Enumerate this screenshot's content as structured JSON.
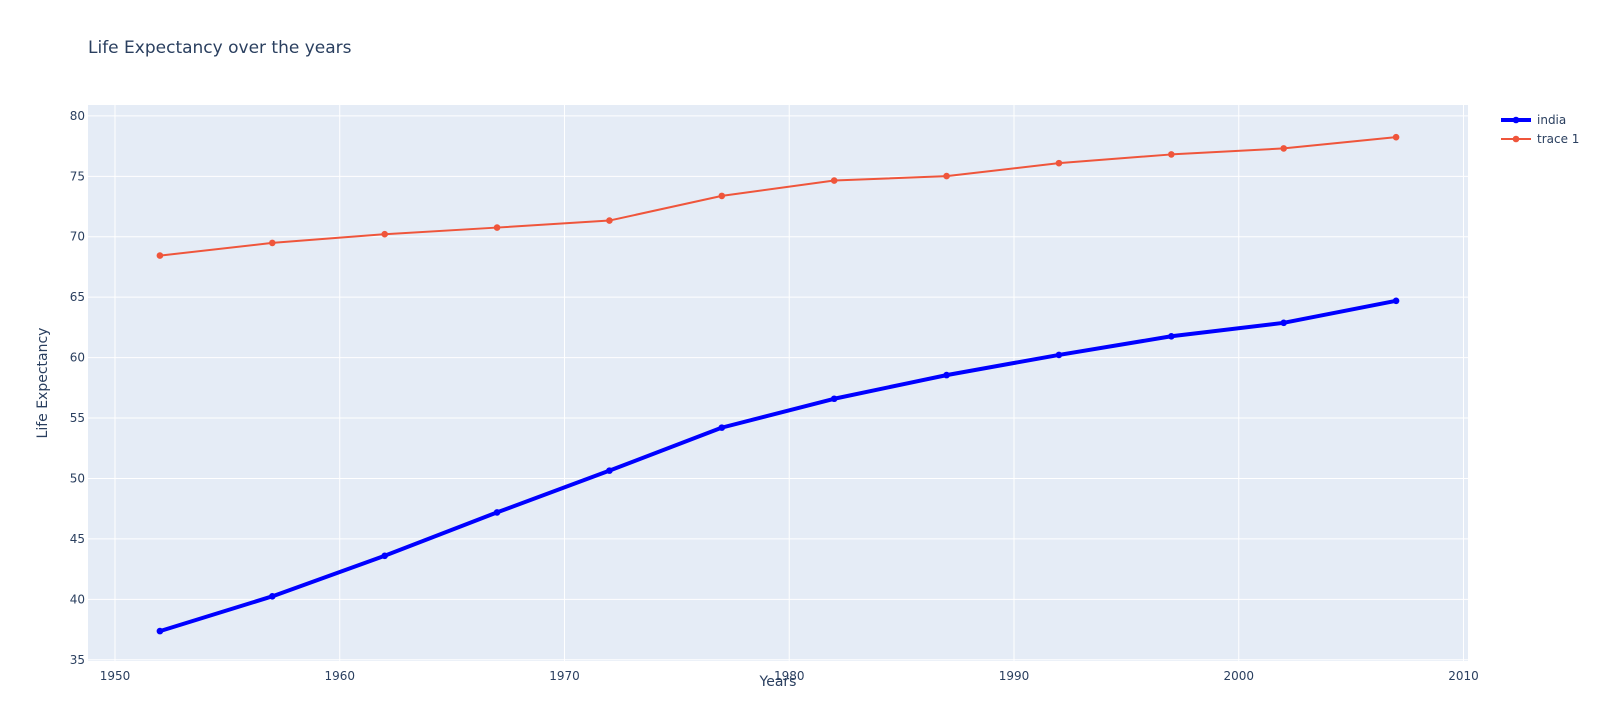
{
  "chart_data": {
    "type": "line",
    "title": "Life Expectancy over the years",
    "xlabel": "Years",
    "ylabel": "Life Expectancy",
    "xlim": [
      1948.8,
      2010.2
    ],
    "ylim": [
      34.9,
      80.9
    ],
    "xticks": [
      1950,
      1960,
      1970,
      1980,
      1990,
      2000,
      2010
    ],
    "yticks": [
      35,
      40,
      45,
      50,
      55,
      60,
      65,
      70,
      75,
      80
    ],
    "grid": true,
    "legend_position": "top-right",
    "x": [
      1952,
      1957,
      1962,
      1967,
      1972,
      1977,
      1982,
      1987,
      1992,
      1997,
      2002,
      2007
    ],
    "series": [
      {
        "name": "india",
        "color": "#0000ff",
        "values": [
          37.373,
          40.249,
          43.605,
          47.193,
          50.651,
          54.208,
          56.596,
          58.553,
          60.223,
          61.765,
          62.879,
          64.698
        ]
      },
      {
        "name": "trace 1",
        "color": "#ef553b",
        "values": [
          68.44,
          69.49,
          70.21,
          70.76,
          71.34,
          73.38,
          74.65,
          75.02,
          76.09,
          76.81,
          77.31,
          78.24
        ]
      }
    ],
    "colors": {
      "plot_background": "#e5ecf6",
      "gridline": "#ffffff",
      "text": "#2a3f5f"
    }
  }
}
